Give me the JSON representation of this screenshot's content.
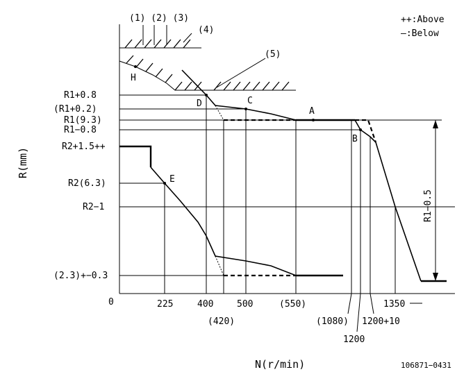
{
  "legend": {
    "above": "++:Above",
    "below": "—:Below"
  },
  "top_labels": {
    "group": "(1) (2) (3)",
    "item4": "(4)",
    "item5": "(5)"
  },
  "axis": {
    "y_title": "R(mm)",
    "x_title": "N(r/min)",
    "origin": "0"
  },
  "y_ticks": {
    "r1_plus_08": "R1+0.8",
    "r1_plus_02": "(R1+0.2)",
    "r1": "R1(9.3)",
    "r1_minus_08": "R1−0.8",
    "r2_plus_15": "R2+1.5++",
    "r2": "R2(6.3)",
    "r2_minus_1": "R2−1",
    "idle": "(2.3)+−0.3"
  },
  "x_ticks": {
    "n225": "225",
    "n400": "400",
    "n500": "500",
    "n550": "(550)",
    "n1350": "1350",
    "n420": "(420)",
    "n1080": "(1080)",
    "n1200_10": "1200+10",
    "n1200": "1200"
  },
  "points": {
    "A": "A",
    "B": "B",
    "C": "C",
    "D": "D",
    "E": "E",
    "H": "H"
  },
  "dimension": "R1−0.5",
  "figure_id": "106871−0431"
}
